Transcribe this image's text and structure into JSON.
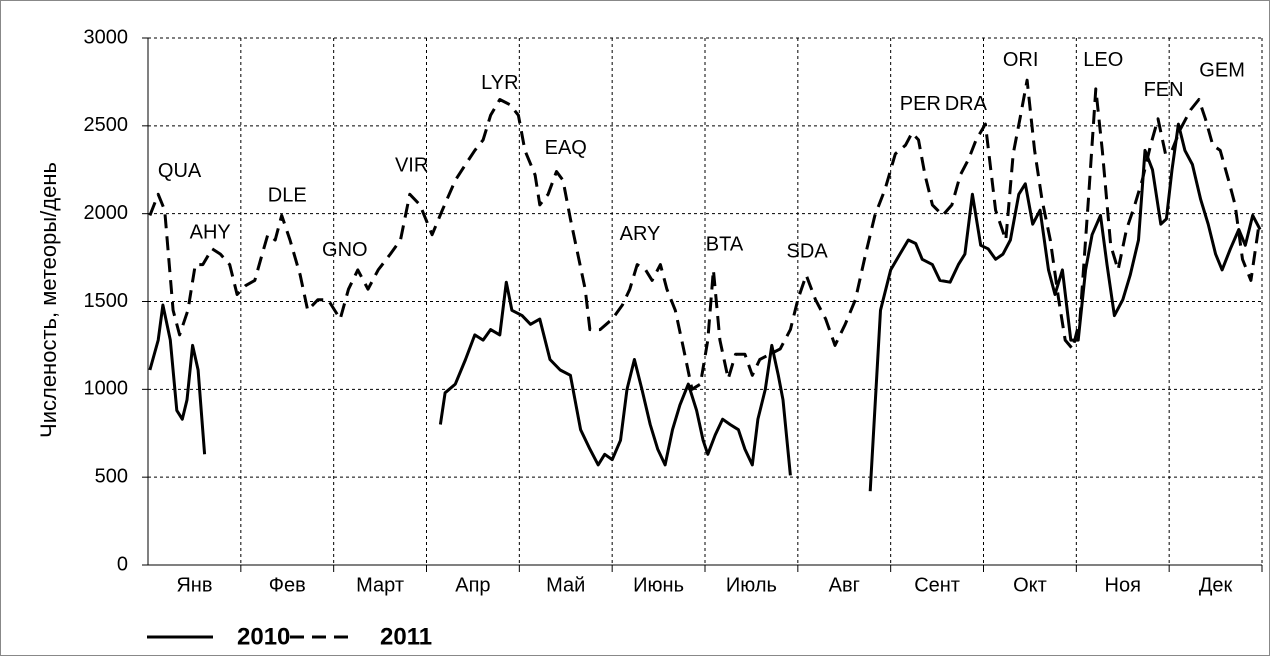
{
  "chart_data": {
    "type": "line",
    "ylabel": "Численость, метеоры/день",
    "categories": [
      "Янв",
      "Фев",
      "Март",
      "Апр",
      "Май",
      "Июнь",
      "Июль",
      "Авг",
      "Сент",
      "Окт",
      "Ноя",
      "Дек"
    ],
    "xlim": [
      0,
      12
    ],
    "ylim": [
      0,
      3000
    ],
    "yticks": [
      0,
      500,
      1000,
      1500,
      2000,
      2500,
      3000
    ],
    "grid": true,
    "series": [
      {
        "name": "2010",
        "color": "#000000",
        "style": "solid",
        "x": [
          0.02,
          0.11,
          0.16,
          0.24,
          0.31,
          0.37,
          0.42,
          0.48,
          0.54,
          0.61,
          null,
          3.15,
          3.2,
          3.31,
          3.42,
          3.52,
          3.61,
          3.69,
          3.79,
          3.86,
          3.92,
          4.03,
          4.12,
          4.22,
          4.33,
          4.44,
          4.55,
          4.66,
          4.76,
          4.85,
          4.92,
          5.0,
          5.09,
          5.16,
          5.24,
          5.32,
          5.41,
          5.49,
          5.57,
          5.65,
          5.73,
          5.82,
          5.91,
          5.98,
          6.03,
          6.11,
          6.19,
          6.27,
          6.36,
          6.43,
          6.51,
          6.57,
          6.65,
          6.72,
          6.79,
          6.84,
          6.92,
          null,
          7.78,
          7.89,
          8.0,
          8.1,
          8.19,
          8.27,
          8.34,
          8.45,
          8.53,
          8.64,
          8.73,
          8.8,
          8.88,
          8.97,
          9.05,
          9.13,
          9.21,
          9.29,
          9.38,
          9.45,
          9.53,
          9.61,
          9.7,
          9.77,
          9.85,
          9.94,
          10.02,
          10.1,
          10.17,
          10.26,
          10.33,
          10.41,
          10.5,
          10.58,
          10.67,
          10.74,
          10.82,
          10.91,
          10.97,
          11.03,
          11.1,
          11.17,
          11.25,
          11.34,
          11.42,
          11.5,
          11.57,
          11.66,
          11.75,
          11.82,
          11.9,
          11.98
        ],
        "values": [
          1110,
          1280,
          1480,
          1280,
          880,
          830,
          940,
          1250,
          1110,
          630,
          null,
          800,
          980,
          1030,
          1170,
          1310,
          1280,
          1340,
          1310,
          1610,
          1450,
          1420,
          1370,
          1400,
          1170,
          1110,
          1080,
          770,
          660,
          570,
          630,
          600,
          710,
          1000,
          1170,
          1000,
          800,
          660,
          570,
          770,
          910,
          1030,
          880,
          710,
          630,
          740,
          830,
          800,
          770,
          660,
          570,
          830,
          1000,
          1250,
          1080,
          940,
          510,
          null,
          420,
          1450,
          1680,
          1770,
          1850,
          1830,
          1740,
          1710,
          1620,
          1610,
          1710,
          1770,
          2110,
          1820,
          1800,
          1740,
          1770,
          1850,
          2110,
          2170,
          1940,
          2020,
          1680,
          1540,
          1680,
          1280,
          1280,
          1680,
          1880,
          1990,
          1710,
          1420,
          1510,
          1650,
          1850,
          2360,
          2250,
          1940,
          1970,
          2250,
          2510,
          2360,
          2280,
          2080,
          1940,
          1770,
          1680,
          1800,
          1910,
          1820,
          1990,
          1910
        ]
      },
      {
        "name": "2011",
        "color": "#000000",
        "style": "dashed",
        "x": [
          0.02,
          0.11,
          0.18,
          0.27,
          0.34,
          0.43,
          0.51,
          0.59,
          0.69,
          0.78,
          0.88,
          0.96,
          1.05,
          1.15,
          1.23,
          1.29,
          1.37,
          1.44,
          1.53,
          1.64,
          1.72,
          1.83,
          1.94,
          2.07,
          2.16,
          2.26,
          2.37,
          2.48,
          2.61,
          2.72,
          2.82,
          2.93,
          3.06,
          3.17,
          3.31,
          3.42,
          3.52,
          3.61,
          3.69,
          3.79,
          3.9,
          3.99,
          4.06,
          4.17,
          4.22,
          4.31,
          4.4,
          4.47,
          4.55,
          4.63,
          4.71,
          4.76,
          4.87,
          5.0,
          5.11,
          5.19,
          5.27,
          5.36,
          5.43,
          5.52,
          5.59,
          5.68,
          5.77,
          5.86,
          5.95,
          6.03,
          6.09,
          6.16,
          6.25,
          6.33,
          6.43,
          6.51,
          6.59,
          6.7,
          6.81,
          6.92,
          7.0,
          7.09,
          7.19,
          7.3,
          7.4,
          7.51,
          7.62,
          7.73,
          7.83,
          7.94,
          8.05,
          8.16,
          8.23,
          8.3,
          8.37,
          8.45,
          8.56,
          8.66,
          8.75,
          8.84,
          8.92,
          9.02,
          9.13,
          9.24,
          9.32,
          9.4,
          9.47,
          9.55,
          9.63,
          9.72,
          9.81,
          9.88,
          9.96,
          10.04,
          10.13,
          10.21,
          10.28,
          10.37,
          10.45,
          10.54,
          10.63,
          10.71,
          10.8,
          10.88,
          10.96,
          11.03,
          11.12,
          11.23,
          11.32,
          11.39,
          11.47,
          11.55,
          11.64,
          11.71,
          11.79,
          11.88,
          11.96
        ],
        "values": [
          1990,
          2110,
          2020,
          1450,
          1310,
          1450,
          1710,
          1710,
          1800,
          1770,
          1710,
          1540,
          1590,
          1620,
          1770,
          1880,
          1850,
          1990,
          1850,
          1650,
          1450,
          1510,
          1510,
          1400,
          1570,
          1680,
          1570,
          1680,
          1770,
          1850,
          2110,
          2050,
          1880,
          2020,
          2190,
          2280,
          2360,
          2420,
          2560,
          2650,
          2620,
          2560,
          2360,
          2220,
          2050,
          2110,
          2240,
          2190,
          1970,
          1770,
          1570,
          1340,
          1340,
          1400,
          1480,
          1570,
          1710,
          1680,
          1620,
          1710,
          1570,
          1450,
          1230,
          1000,
          1030,
          1280,
          1680,
          1280,
          1060,
          1200,
          1200,
          1080,
          1170,
          1200,
          1230,
          1340,
          1510,
          1650,
          1510,
          1400,
          1250,
          1370,
          1510,
          1770,
          1990,
          2140,
          2340,
          2390,
          2460,
          2420,
          2220,
          2050,
          1990,
          2050,
          2220,
          2310,
          2420,
          2510,
          2020,
          1850,
          2340,
          2560,
          2760,
          2360,
          2080,
          1850,
          1510,
          1280,
          1230,
          1400,
          2080,
          2710,
          2360,
          1820,
          1680,
          1910,
          2050,
          2190,
          2390,
          2540,
          2340,
          2360,
          2480,
          2590,
          2650,
          2540,
          2390,
          2360,
          2190,
          2050,
          1740,
          1620,
          1910
        ]
      }
    ],
    "annotations": [
      {
        "text": "QUA",
        "x": 0.34,
        "y": 2240
      },
      {
        "text": "AHY",
        "x": 0.67,
        "y": 1890
      },
      {
        "text": "DLE",
        "x": 1.5,
        "y": 2100
      },
      {
        "text": "GNO",
        "x": 2.12,
        "y": 1790
      },
      {
        "text": "VIR",
        "x": 2.84,
        "y": 2270
      },
      {
        "text": "LYR",
        "x": 3.79,
        "y": 2740
      },
      {
        "text": "EAQ",
        "x": 4.5,
        "y": 2370
      },
      {
        "text": "ARY",
        "x": 5.3,
        "y": 1880
      },
      {
        "text": "BTA",
        "x": 6.21,
        "y": 1820
      },
      {
        "text": "SDA",
        "x": 7.1,
        "y": 1780
      },
      {
        "text": "PER",
        "x": 8.32,
        "y": 2620
      },
      {
        "text": "DRA",
        "x": 8.81,
        "y": 2620
      },
      {
        "text": "ORI",
        "x": 9.4,
        "y": 2870
      },
      {
        "text": "LEO",
        "x": 10.29,
        "y": 2870
      },
      {
        "text": "FEN",
        "x": 10.94,
        "y": 2700
      },
      {
        "text": "GEM",
        "x": 11.57,
        "y": 2810
      }
    ]
  }
}
